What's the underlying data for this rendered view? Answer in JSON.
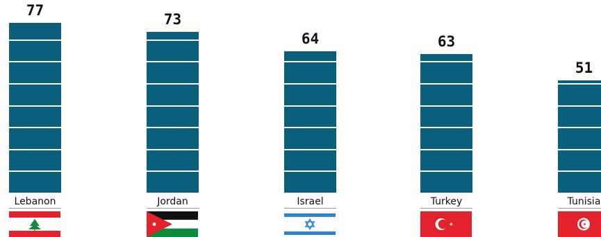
{
  "chart_data": {
    "type": "bar",
    "categories": [
      "Lebanon",
      "Jordan",
      "Israel",
      "Turkey",
      "Tunisia"
    ],
    "values": [
      77,
      73,
      64,
      63,
      51
    ],
    "flag_icons": [
      "lebanon-flag-icon",
      "jordan-flag-icon",
      "israel-flag-icon",
      "turkey-flag-icon",
      "tunisia-flag-icon"
    ],
    "colors": {
      "bar": "#0b5f7c",
      "stripe": "#ffffff"
    },
    "ylim": [
      0,
      77
    ],
    "grid": false
  }
}
